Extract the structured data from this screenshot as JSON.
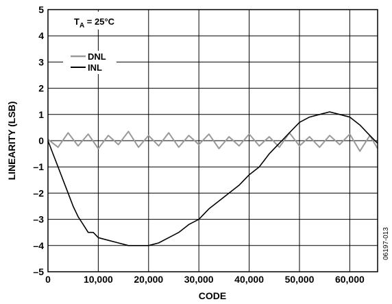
{
  "chart_data": {
    "type": "line",
    "title": "",
    "xlabel": "CODE",
    "ylabel": "LINEARITY (LSB)",
    "xlim": [
      0,
      65535
    ],
    "ylim": [
      -5,
      5
    ],
    "x_ticks": [
      0,
      10000,
      20000,
      30000,
      40000,
      50000,
      60000
    ],
    "x_tick_labels": [
      "0",
      "10,000",
      "20,000",
      "30,000",
      "40,000",
      "50,000",
      "60,000"
    ],
    "y_ticks": [
      -5,
      -4,
      -3,
      -2,
      -1,
      0,
      1,
      2,
      3,
      4,
      5
    ],
    "y_tick_labels": [
      "–5",
      "–4",
      "–3",
      "–2",
      "–1",
      "0",
      "1",
      "2",
      "3",
      "4",
      "5"
    ],
    "grid": true,
    "annotation": {
      "main": "T",
      "sub": "A",
      "rest": " = 25°C"
    },
    "legend_position": "top-left",
    "figure_id": "06197-013",
    "series": [
      {
        "name": "DNL",
        "color": "#999999",
        "x": [
          0,
          2000,
          4000,
          6000,
          8000,
          10000,
          12000,
          14000,
          16000,
          18000,
          20000,
          22000,
          24000,
          26000,
          28000,
          30000,
          32000,
          34000,
          36000,
          38000,
          40000,
          42000,
          44000,
          46000,
          48000,
          50000,
          52000,
          54000,
          56000,
          58000,
          60000,
          62000,
          64000,
          65535
        ],
        "y": [
          0.05,
          -0.25,
          0.3,
          -0.2,
          0.25,
          -0.3,
          0.2,
          -0.15,
          0.35,
          -0.25,
          0.2,
          -0.2,
          0.3,
          -0.25,
          0.2,
          -0.15,
          0.25,
          -0.3,
          0.15,
          -0.2,
          0.25,
          -0.2,
          0.15,
          -0.25,
          0.3,
          -0.2,
          0.15,
          -0.25,
          0.2,
          -0.15,
          0.25,
          -0.4,
          0.2,
          -0.3
        ]
      },
      {
        "name": "INL",
        "color": "#000000",
        "x": [
          0,
          1000,
          2000,
          3000,
          4000,
          5000,
          6000,
          7000,
          8000,
          9000,
          10000,
          12000,
          14000,
          16000,
          18000,
          20000,
          22000,
          24000,
          26000,
          28000,
          30000,
          32000,
          34000,
          36000,
          38000,
          40000,
          42000,
          44000,
          46000,
          48000,
          50000,
          52000,
          54000,
          56000,
          58000,
          60000,
          62000,
          64000,
          65535
        ],
        "y": [
          0.0,
          -0.5,
          -1.0,
          -1.5,
          -2.0,
          -2.5,
          -2.9,
          -3.2,
          -3.5,
          -3.5,
          -3.7,
          -3.8,
          -3.9,
          -4.0,
          -4.0,
          -4.0,
          -3.9,
          -3.7,
          -3.5,
          -3.2,
          -3.0,
          -2.6,
          -2.3,
          -2.0,
          -1.7,
          -1.3,
          -1.0,
          -0.5,
          -0.1,
          0.3,
          0.7,
          0.9,
          1.0,
          1.1,
          1.0,
          0.9,
          0.6,
          0.2,
          -0.1
        ]
      }
    ]
  }
}
